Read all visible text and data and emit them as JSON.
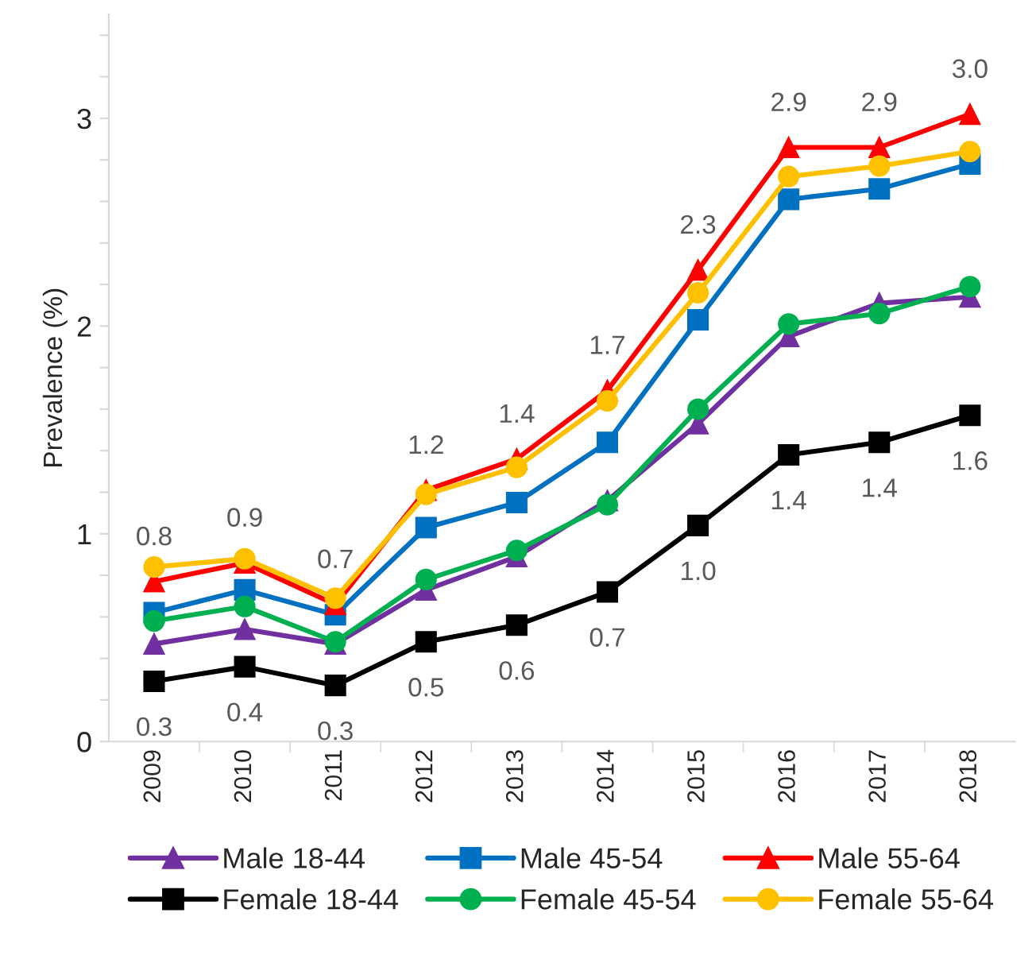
{
  "chart_data": {
    "type": "line",
    "ylabel": "Prevalence (%)",
    "categories": [
      "2009",
      "2010",
      "2011",
      "2012",
      "2013",
      "2014",
      "2015",
      "2016",
      "2017",
      "2018"
    ],
    "ylim": [
      0,
      3.5
    ],
    "yticks": [
      0,
      {
        "value": 0.2,
        "label": null
      },
      {
        "value": 0.4,
        "label": null
      },
      {
        "value": 0.6,
        "label": null
      },
      {
        "value": 0.8,
        "label": null
      },
      1,
      {
        "value": 1.2,
        "label": null
      },
      {
        "value": 1.4,
        "label": null
      },
      {
        "value": 1.6,
        "label": null
      },
      {
        "value": 1.8,
        "label": null
      },
      2,
      {
        "value": 2.2,
        "label": null
      },
      {
        "value": 2.4,
        "label": null
      },
      {
        "value": 2.6,
        "label": null
      },
      {
        "value": 2.8,
        "label": null
      },
      3,
      {
        "value": 3.2,
        "label": null
      },
      {
        "value": 3.4,
        "label": null
      }
    ],
    "legend": "bottom",
    "grid": false,
    "line_style": "solid",
    "series": [
      {
        "name": "Male 18-44",
        "color": "#7030a0",
        "marker": "triangle",
        "values": [
          0.47,
          0.54,
          0.47,
          0.73,
          0.89,
          1.16,
          1.53,
          1.95,
          2.11,
          2.14
        ]
      },
      {
        "name": "Male 45-54",
        "color": "#0070c0",
        "marker": "square",
        "values": [
          0.62,
          0.73,
          0.61,
          1.03,
          1.15,
          1.44,
          2.03,
          2.61,
          2.66,
          2.78
        ]
      },
      {
        "name": "Male 55-64",
        "color": "#ff0000",
        "marker": "triangle",
        "values": [
          0.77,
          0.86,
          0.66,
          1.21,
          1.36,
          1.69,
          2.27,
          2.86,
          2.86,
          3.02
        ],
        "value_labels": [
          "0.8",
          "0.9",
          "0.7",
          "1.2",
          "1.4",
          "1.7",
          "2.3",
          "2.9",
          "2.9",
          "3.0"
        ]
      },
      {
        "name": "Female 18-44",
        "color": "#000000",
        "marker": "square",
        "values": [
          0.29,
          0.36,
          0.27,
          0.48,
          0.56,
          0.72,
          1.04,
          1.38,
          1.44,
          1.57
        ],
        "value_labels": [
          "0.3",
          "0.4",
          "0.3",
          "0.5",
          "0.6",
          "0.7",
          "1.0",
          "1.4",
          "1.4",
          "1.6"
        ]
      },
      {
        "name": "Female 45-54",
        "color": "#00b050",
        "marker": "circle",
        "values": [
          0.58,
          0.65,
          0.48,
          0.78,
          0.92,
          1.14,
          1.6,
          2.01,
          2.06,
          2.19
        ]
      },
      {
        "name": "Female 55-64",
        "color": "#ffc000",
        "marker": "circle",
        "values": [
          0.84,
          0.88,
          0.69,
          1.19,
          1.32,
          1.64,
          2.16,
          2.72,
          2.77,
          2.84
        ]
      }
    ]
  }
}
